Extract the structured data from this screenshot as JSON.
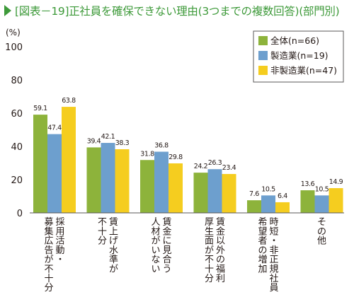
{
  "title": "[図表－19]正社員を確保できない理由(3つまでの複数回答)(部門別)",
  "chart_data": {
    "type": "bar",
    "title": "[図表－19]正社員を確保できない理由(3つまでの複数回答)(部門別)",
    "ylabel": "(%)",
    "ylim": [
      0,
      100
    ],
    "yticks": [
      0,
      20,
      40,
      60,
      80,
      100
    ],
    "grid": false,
    "legend_position": "top-right",
    "categories": [
      "採用活動・募集広告が不十分",
      "賃上げ水準が不十分",
      "賃金に見合う人材がいない",
      "賃金以外の福利厚生面が不十分",
      "時短・非正規社員希望者の増加",
      "その他"
    ],
    "series": [
      {
        "name": "全体(n=66)",
        "color": "#8db33b",
        "values": [
          59.1,
          39.4,
          31.8,
          24.2,
          7.6,
          13.6
        ]
      },
      {
        "name": "製造業(n=19)",
        "color": "#6d9fce",
        "values": [
          47.4,
          42.1,
          36.8,
          26.3,
          10.5,
          10.5
        ]
      },
      {
        "name": "非製造業(n=47)",
        "color": "#f5cd1f",
        "values": [
          63.8,
          38.3,
          29.8,
          23.4,
          6.4,
          14.9
        ]
      }
    ]
  }
}
